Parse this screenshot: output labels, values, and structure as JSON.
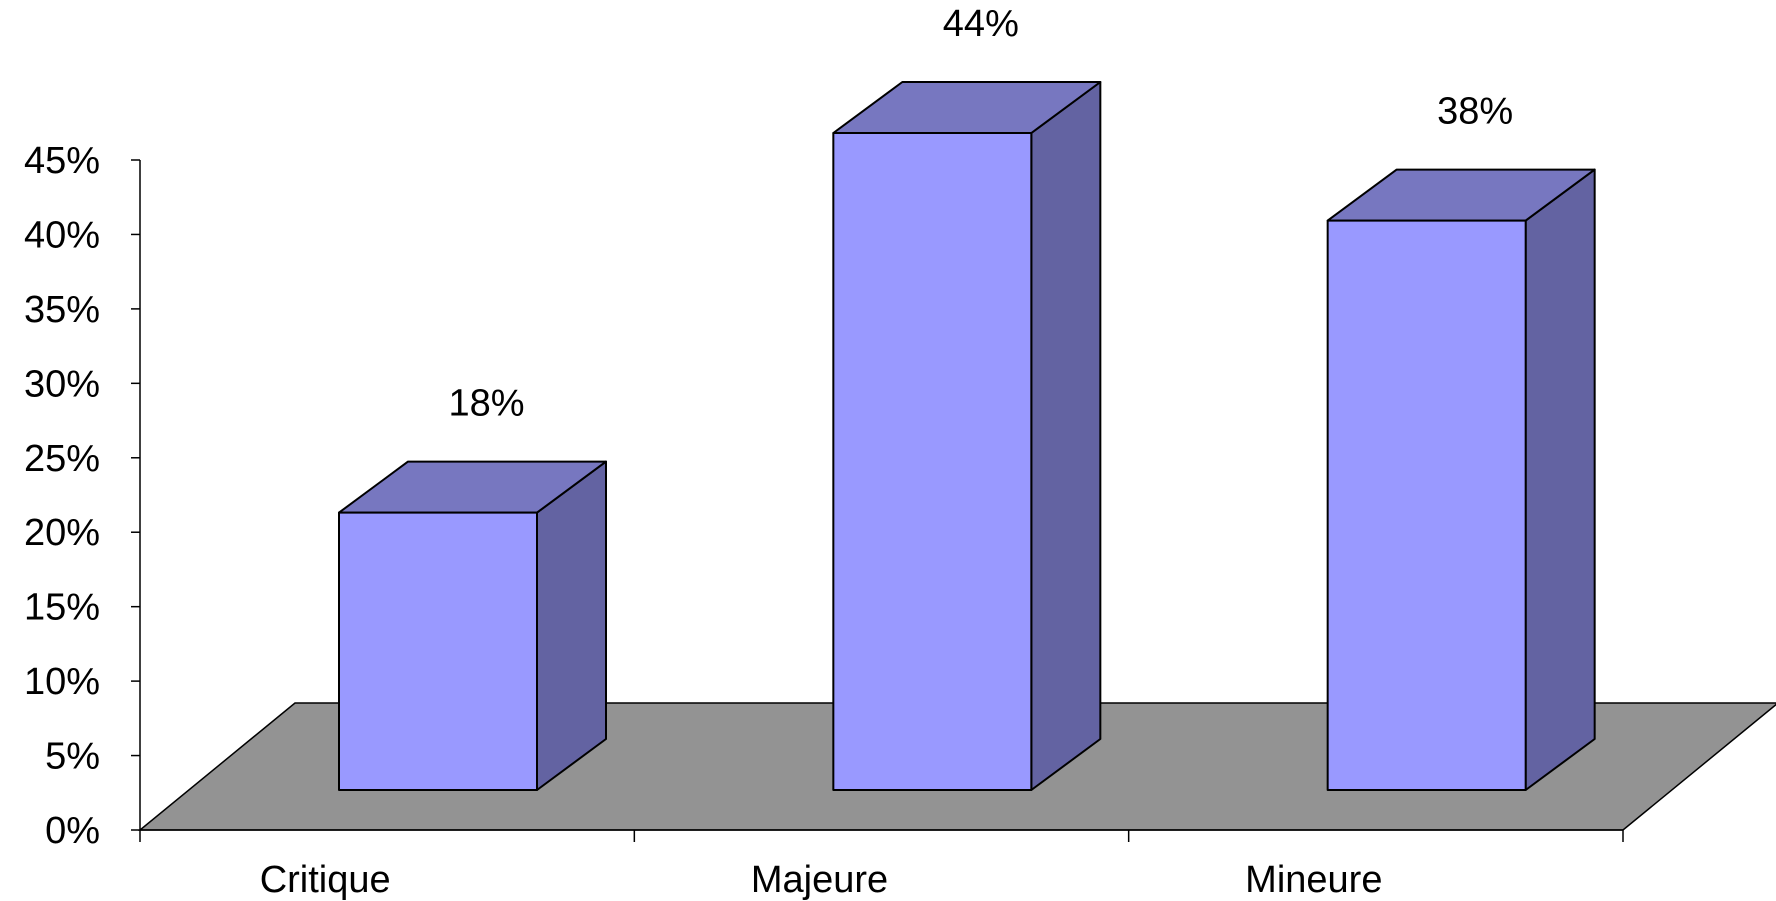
{
  "chart_data": {
    "type": "bar",
    "categories": [
      "Critique",
      "Majeure",
      "Mineure"
    ],
    "values": [
      18,
      44,
      38
    ],
    "data_labels": [
      "18%",
      "44%",
      "38%"
    ],
    "ylim": [
      0,
      45
    ],
    "yticks": [
      0,
      5,
      10,
      15,
      20,
      25,
      30,
      35,
      40,
      45
    ],
    "ytick_labels": [
      "0%",
      "5%",
      "10%",
      "15%",
      "20%",
      "25%",
      "30%",
      "35%",
      "40%",
      "45%"
    ],
    "grid": false,
    "legend": "none",
    "style": "3d-column",
    "colors": {
      "bar_front": "#9999ff",
      "bar_top": "#7777c0",
      "bar_side": "#6363a2",
      "floor": "#939393"
    }
  }
}
